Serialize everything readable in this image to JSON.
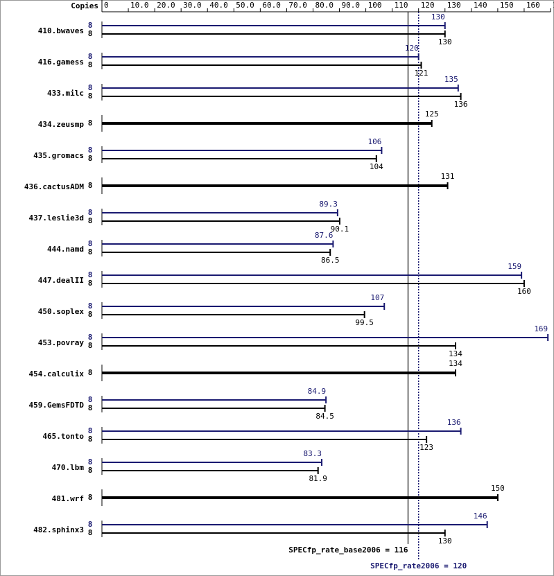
{
  "chart_data": {
    "type": "bar",
    "copies_label": "Copies",
    "categories": [
      "410.bwaves",
      "416.gamess",
      "433.milc",
      "434.zeusmp",
      "435.gromacs",
      "436.cactusADM",
      "437.leslie3d",
      "444.namd",
      "447.dealII",
      "450.soplex",
      "453.povray",
      "454.calculix",
      "459.GemsFDTD",
      "465.tonto",
      "470.lbm",
      "481.wrf",
      "482.sphinx3"
    ],
    "series": [
      {
        "color": "#000000",
        "copies": [
          8,
          8,
          8,
          8,
          8,
          8,
          8,
          8,
          8,
          8,
          8,
          8,
          8,
          8,
          8,
          8,
          8
        ],
        "values": [
          130,
          121,
          136,
          125,
          104,
          131,
          90.1,
          86.5,
          160,
          99.5,
          134,
          134,
          84.5,
          123,
          81.9,
          150,
          130
        ]
      },
      {
        "color": "#191970",
        "copies": [
          8,
          8,
          8,
          null,
          8,
          null,
          8,
          8,
          8,
          8,
          8,
          null,
          8,
          8,
          8,
          null,
          8
        ],
        "values": [
          130,
          120,
          135,
          null,
          106,
          null,
          89.3,
          87.6,
          159,
          107,
          169,
          null,
          84.9,
          136,
          83.3,
          null,
          146
        ]
      }
    ],
    "xlim": [
      0,
      170
    ],
    "xticks": [
      0,
      {
        "value": 10,
        "label": "10.0"
      },
      {
        "value": 20,
        "label": "20.0"
      },
      {
        "value": 30,
        "label": "30.0"
      },
      {
        "value": 40,
        "label": "40.0"
      },
      {
        "value": 50,
        "label": "50.0"
      },
      {
        "value": 60,
        "label": "60.0"
      },
      {
        "value": 70,
        "label": "70.0"
      },
      {
        "value": 80,
        "label": "80.0"
      },
      {
        "value": 90,
        "label": "90.0"
      },
      100,
      110,
      120,
      130,
      140,
      150,
      160,
      170
    ],
    "reference_lines": [
      {
        "value": 116,
        "label": "SPECfp_rate_base2006 = 116",
        "color": "#000000",
        "style": "solid"
      },
      {
        "value": 120,
        "label": "SPECfp_rate2006 = 120",
        "color": "#191970",
        "style": "dotted"
      }
    ]
  }
}
